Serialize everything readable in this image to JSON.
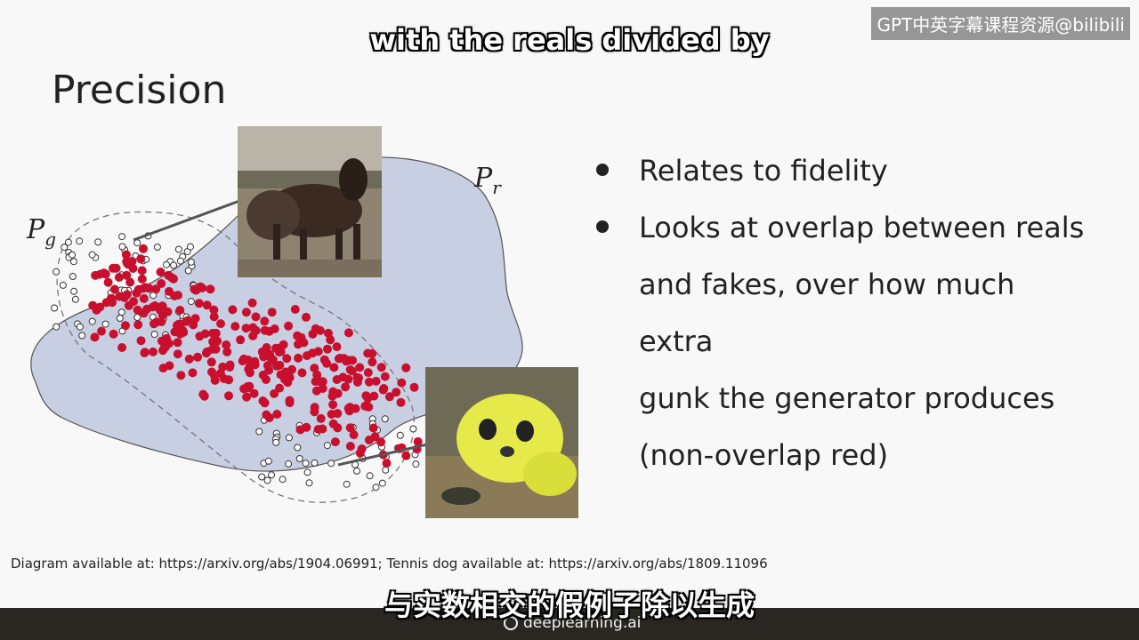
{
  "slide": {
    "title": "Precision",
    "bullets": [
      "Relates to fidelity",
      "Looks at overlap between reals and fakes, over how much extra gunk the generator produces (non-overlap red)"
    ],
    "bullet_lines": [
      [
        "Relates to fidelity"
      ],
      [
        "Looks at overlap between reals",
        "and fakes, over how much extra",
        "gunk the generator produces",
        "(non-overlap red)"
      ]
    ],
    "credit": "Diagram available at: https://arxiv.org/abs/1904.06991; Tennis dog available at:  https://arxiv.org/abs/1809.11096"
  },
  "diagram": {
    "label_real": "P",
    "label_real_sub": "r",
    "label_gen": "P",
    "label_gen_sub": "g",
    "colors": {
      "real_region": "#c8cfe3",
      "fake_points": "#c8102e",
      "outline": "#666666"
    }
  },
  "subtitles": {
    "english": "with the reals divided by",
    "chinese": "与实数相交的假例子除以生成"
  },
  "watermark": {
    "top_right": "GPT中英字幕课程资源@bilibili"
  },
  "footer": {
    "brand": "deeplearning.ai"
  }
}
